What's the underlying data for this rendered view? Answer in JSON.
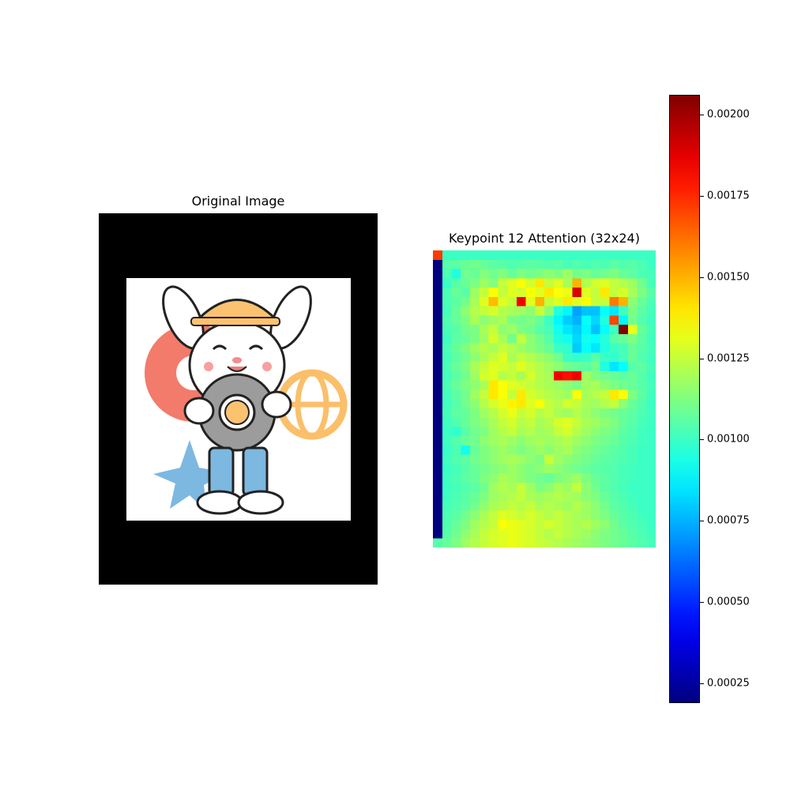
{
  "left_panel": {
    "title": "Original Image"
  },
  "right_panel": {
    "title": "Keypoint 12 Attention (32x24)"
  },
  "chart_data": {
    "type": "heatmap",
    "title": "Keypoint 12 Attention (32x24)",
    "colormap": "jet",
    "rows": 32,
    "cols": 24,
    "vmin": 0.00019,
    "vmax": 0.00206,
    "colorbar_ticks": [
      "0.00025",
      "0.00050",
      "0.00075",
      "0.00100",
      "0.00125",
      "0.00150",
      "0.00175",
      "0.00200"
    ],
    "grid": false,
    "values": [
      [
        0.00172,
        0.001,
        0.001,
        0.001,
        0.001,
        0.001,
        0.001,
        0.001,
        0.001,
        0.001,
        0.001,
        0.001,
        0.001,
        0.001,
        0.001,
        0.001,
        0.001,
        0.001,
        0.001,
        0.001,
        0.001,
        0.001,
        0.001,
        0.001
      ],
      [
        0.00019,
        0.00105,
        0.00106,
        0.00108,
        0.0011,
        0.00108,
        0.00106,
        0.00105,
        0.00104,
        0.00105,
        0.00106,
        0.00105,
        0.00104,
        0.00105,
        0.00102,
        0.00104,
        0.00102,
        0.00104,
        0.00103,
        0.00106,
        0.00104,
        0.00105,
        0.00103,
        0.001
      ],
      [
        0.00019,
        0.00103,
        0.00095,
        0.0011,
        0.00108,
        0.00113,
        0.0011,
        0.00113,
        0.00108,
        0.00112,
        0.0011,
        0.00112,
        0.00115,
        0.00112,
        0.00118,
        0.0011,
        0.00112,
        0.00108,
        0.0011,
        0.00112,
        0.00108,
        0.00106,
        0.00103,
        0.00102
      ],
      [
        0.00019,
        0.001,
        0.00105,
        0.00108,
        0.00112,
        0.00118,
        0.00113,
        0.00125,
        0.0013,
        0.00135,
        0.00128,
        0.0014,
        0.00125,
        0.0013,
        0.0012,
        0.0015,
        0.00122,
        0.00128,
        0.0013,
        0.00125,
        0.00122,
        0.00118,
        0.0011,
        0.00102
      ],
      [
        0.00019,
        0.00103,
        0.00108,
        0.00105,
        0.00118,
        0.00125,
        0.00135,
        0.00125,
        0.0013,
        0.00128,
        0.00135,
        0.0013,
        0.0014,
        0.00135,
        0.00132,
        0.0019,
        0.0013,
        0.00125,
        0.0014,
        0.00125,
        0.00128,
        0.0012,
        0.00112,
        0.00105
      ],
      [
        0.00019,
        0.00103,
        0.00106,
        0.0011,
        0.0012,
        0.0013,
        0.00148,
        0.0013,
        0.00125,
        0.00185,
        0.0013,
        0.0015,
        0.00125,
        0.0013,
        0.0014,
        0.0013,
        0.00135,
        0.00125,
        0.00125,
        0.0016,
        0.0015,
        0.00115,
        0.00108,
        0.00103
      ],
      [
        0.00019,
        0.00102,
        0.00108,
        0.00115,
        0.00122,
        0.00125,
        0.00128,
        0.00122,
        0.0012,
        0.00118,
        0.00115,
        0.00125,
        0.00115,
        0.00095,
        0.00088,
        0.00072,
        0.00078,
        0.00078,
        0.0009,
        0.00085,
        0.001,
        0.00112,
        0.00106,
        0.00102
      ],
      [
        0.00019,
        0.00104,
        0.00108,
        0.00112,
        0.0012,
        0.00115,
        0.00118,
        0.0012,
        0.00112,
        0.0011,
        0.00112,
        0.00108,
        0.001,
        0.00088,
        0.0008,
        0.00075,
        0.0009,
        0.00082,
        0.00095,
        0.0017,
        0.00088,
        0.0011,
        0.00104,
        0.00101
      ],
      [
        0.00019,
        0.00103,
        0.00105,
        0.0011,
        0.00112,
        0.0012,
        0.00125,
        0.00115,
        0.00118,
        0.00112,
        0.0011,
        0.00105,
        0.00102,
        0.00092,
        0.00085,
        0.0008,
        0.00088,
        0.00078,
        0.0009,
        0.001,
        0.00205,
        0.00132,
        0.00108,
        0.00102
      ],
      [
        0.00019,
        0.00101,
        0.00106,
        0.00108,
        0.00112,
        0.00118,
        0.00128,
        0.0012,
        0.0011,
        0.00125,
        0.00115,
        0.0011,
        0.00105,
        0.00095,
        0.00092,
        0.00082,
        0.00092,
        0.0009,
        0.00096,
        0.00105,
        0.00108,
        0.00112,
        0.00106,
        0.00101
      ],
      [
        0.00019,
        0.00103,
        0.00108,
        0.00112,
        0.00118,
        0.00122,
        0.0012,
        0.00125,
        0.00122,
        0.00118,
        0.00115,
        0.00112,
        0.00108,
        0.001,
        0.00098,
        0.0008,
        0.0009,
        0.00085,
        0.00095,
        0.001,
        0.00102,
        0.00108,
        0.00105,
        0.00102
      ],
      [
        0.00019,
        0.00102,
        0.00106,
        0.0011,
        0.00115,
        0.0012,
        0.00125,
        0.0013,
        0.0012,
        0.00125,
        0.00122,
        0.00118,
        0.00115,
        0.0011,
        0.001,
        0.00098,
        0.001,
        0.00105,
        0.001,
        0.00098,
        0.00102,
        0.00108,
        0.00104,
        0.00101
      ],
      [
        0.00019,
        0.00103,
        0.00108,
        0.00112,
        0.0012,
        0.00125,
        0.0013,
        0.00128,
        0.00125,
        0.0013,
        0.00125,
        0.00122,
        0.00118,
        0.00115,
        0.0011,
        0.00108,
        0.00106,
        0.0011,
        0.00095,
        0.00085,
        0.0009,
        0.00105,
        0.00106,
        0.00102
      ],
      [
        0.00019,
        0.00102,
        0.00106,
        0.0011,
        0.00118,
        0.00128,
        0.0013,
        0.00122,
        0.00125,
        0.0012,
        0.00128,
        0.00122,
        0.0012,
        0.00185,
        0.0018,
        0.00185,
        0.00118,
        0.00112,
        0.0011,
        0.00108,
        0.00106,
        0.00108,
        0.00105,
        0.00101
      ],
      [
        0.00019,
        0.00103,
        0.00108,
        0.00112,
        0.00115,
        0.0012,
        0.0014,
        0.00135,
        0.0013,
        0.00128,
        0.00125,
        0.00122,
        0.0012,
        0.00118,
        0.00115,
        0.00112,
        0.00118,
        0.0012,
        0.00115,
        0.00112,
        0.0011,
        0.00108,
        0.00105,
        0.00102
      ],
      [
        0.00019,
        0.00102,
        0.00106,
        0.0011,
        0.00118,
        0.00125,
        0.0014,
        0.00135,
        0.00125,
        0.0014,
        0.00128,
        0.00125,
        0.00122,
        0.0012,
        0.00118,
        0.00135,
        0.0012,
        0.00122,
        0.00125,
        0.0014,
        0.00135,
        0.00112,
        0.00106,
        0.00101
      ],
      [
        0.00019,
        0.00101,
        0.00105,
        0.0011,
        0.00115,
        0.00122,
        0.00128,
        0.00132,
        0.00138,
        0.0014,
        0.0013,
        0.00135,
        0.00125,
        0.00122,
        0.00128,
        0.00125,
        0.0012,
        0.00118,
        0.00122,
        0.00125,
        0.00115,
        0.00108,
        0.00104,
        0.001
      ],
      [
        0.00019,
        0.00102,
        0.00106,
        0.00108,
        0.00112,
        0.00118,
        0.00122,
        0.00128,
        0.00132,
        0.00125,
        0.00128,
        0.00122,
        0.00125,
        0.0012,
        0.00118,
        0.00122,
        0.00118,
        0.00115,
        0.00112,
        0.0011,
        0.00108,
        0.00106,
        0.00103,
        0.00101
      ],
      [
        0.00019,
        0.00101,
        0.00104,
        0.00108,
        0.00112,
        0.00115,
        0.0012,
        0.00125,
        0.00128,
        0.00122,
        0.00125,
        0.0012,
        0.00122,
        0.00128,
        0.0013,
        0.00125,
        0.0012,
        0.00118,
        0.00115,
        0.00112,
        0.00108,
        0.00105,
        0.00102,
        0.001
      ],
      [
        0.00019,
        0.001,
        0.00098,
        0.00105,
        0.0011,
        0.00112,
        0.00118,
        0.00122,
        0.00125,
        0.0012,
        0.00122,
        0.00118,
        0.0012,
        0.00125,
        0.00128,
        0.00122,
        0.00118,
        0.00115,
        0.00112,
        0.0011,
        0.00106,
        0.00104,
        0.00101,
        0.001
      ],
      [
        0.00019,
        0.00101,
        0.00104,
        0.00108,
        0.0011,
        0.00115,
        0.00118,
        0.0012,
        0.00118,
        0.00115,
        0.00118,
        0.0012,
        0.00118,
        0.0012,
        0.00122,
        0.00118,
        0.00115,
        0.00112,
        0.0011,
        0.00108,
        0.00105,
        0.00103,
        0.00101,
        0.001
      ],
      [
        0.00019,
        0.001,
        0.00103,
        0.00092,
        0.00108,
        0.00112,
        0.00115,
        0.00118,
        0.00115,
        0.00112,
        0.00115,
        0.00118,
        0.00115,
        0.00118,
        0.0012,
        0.00115,
        0.00112,
        0.0011,
        0.00108,
        0.00106,
        0.00104,
        0.00102,
        0.001,
        0.001
      ],
      [
        0.00019,
        0.00101,
        0.00104,
        0.00106,
        0.0011,
        0.00112,
        0.00115,
        0.00118,
        0.0012,
        0.00118,
        0.00115,
        0.00112,
        0.00125,
        0.00118,
        0.00115,
        0.00112,
        0.0011,
        0.00108,
        0.00106,
        0.00105,
        0.00103,
        0.00102,
        0.001,
        0.001
      ],
      [
        0.00019,
        0.001,
        0.00102,
        0.00105,
        0.00108,
        0.0011,
        0.00113,
        0.00115,
        0.00118,
        0.00115,
        0.00112,
        0.00115,
        0.00118,
        0.00115,
        0.00112,
        0.0011,
        0.00108,
        0.00106,
        0.00105,
        0.00104,
        0.00102,
        0.00101,
        0.001,
        0.001
      ],
      [
        0.00019,
        0.00101,
        0.00103,
        0.00106,
        0.00108,
        0.00112,
        0.00115,
        0.0012,
        0.00118,
        0.00115,
        0.00112,
        0.0011,
        0.00108,
        0.00112,
        0.00115,
        0.00118,
        0.00112,
        0.00108,
        0.00106,
        0.00104,
        0.00102,
        0.00101,
        0.001,
        0.001
      ],
      [
        0.00019,
        0.001,
        0.00102,
        0.00104,
        0.00106,
        0.0011,
        0.00118,
        0.00122,
        0.0012,
        0.00125,
        0.00118,
        0.00112,
        0.00115,
        0.0012,
        0.00118,
        0.00125,
        0.00115,
        0.0011,
        0.00106,
        0.00104,
        0.00102,
        0.001,
        0.001,
        0.001
      ],
      [
        0.00019,
        0.00101,
        0.00103,
        0.00105,
        0.00108,
        0.00112,
        0.00118,
        0.0012,
        0.00122,
        0.00125,
        0.0012,
        0.00118,
        0.0012,
        0.00122,
        0.0012,
        0.00118,
        0.00115,
        0.00112,
        0.00108,
        0.00105,
        0.00103,
        0.00101,
        0.001,
        0.001
      ],
      [
        0.00019,
        0.00102,
        0.00104,
        0.00106,
        0.0011,
        0.00115,
        0.0012,
        0.00122,
        0.00125,
        0.00122,
        0.00125,
        0.0012,
        0.00122,
        0.0012,
        0.00118,
        0.00122,
        0.00118,
        0.00115,
        0.0011,
        0.00106,
        0.00104,
        0.00102,
        0.001,
        0.001
      ],
      [
        0.00019,
        0.00103,
        0.00106,
        0.0011,
        0.00115,
        0.0012,
        0.00125,
        0.0013,
        0.00128,
        0.00125,
        0.00128,
        0.00125,
        0.00122,
        0.00125,
        0.00122,
        0.0012,
        0.00118,
        0.00115,
        0.00112,
        0.00108,
        0.00105,
        0.00103,
        0.00101,
        0.001
      ],
      [
        0.00019,
        0.00104,
        0.00108,
        0.00112,
        0.00118,
        0.00122,
        0.00125,
        0.00135,
        0.00132,
        0.0013,
        0.00128,
        0.00125,
        0.00128,
        0.00125,
        0.00122,
        0.0012,
        0.00122,
        0.00118,
        0.00115,
        0.0011,
        0.00106,
        0.00104,
        0.00102,
        0.001
      ],
      [
        0.00019,
        0.00105,
        0.0011,
        0.00115,
        0.0012,
        0.00125,
        0.00128,
        0.0013,
        0.00132,
        0.0013,
        0.00128,
        0.00125,
        0.00122,
        0.00125,
        0.00122,
        0.0012,
        0.00118,
        0.00115,
        0.00112,
        0.0011,
        0.00108,
        0.00105,
        0.00103,
        0.00101
      ],
      [
        0.00105,
        0.00108,
        0.00112,
        0.00118,
        0.00122,
        0.00125,
        0.00128,
        0.0013,
        0.00132,
        0.0013,
        0.00128,
        0.00126,
        0.00124,
        0.00122,
        0.0012,
        0.00118,
        0.00116,
        0.00114,
        0.00112,
        0.0011,
        0.00108,
        0.00106,
        0.00104,
        0.00102
      ]
    ]
  }
}
